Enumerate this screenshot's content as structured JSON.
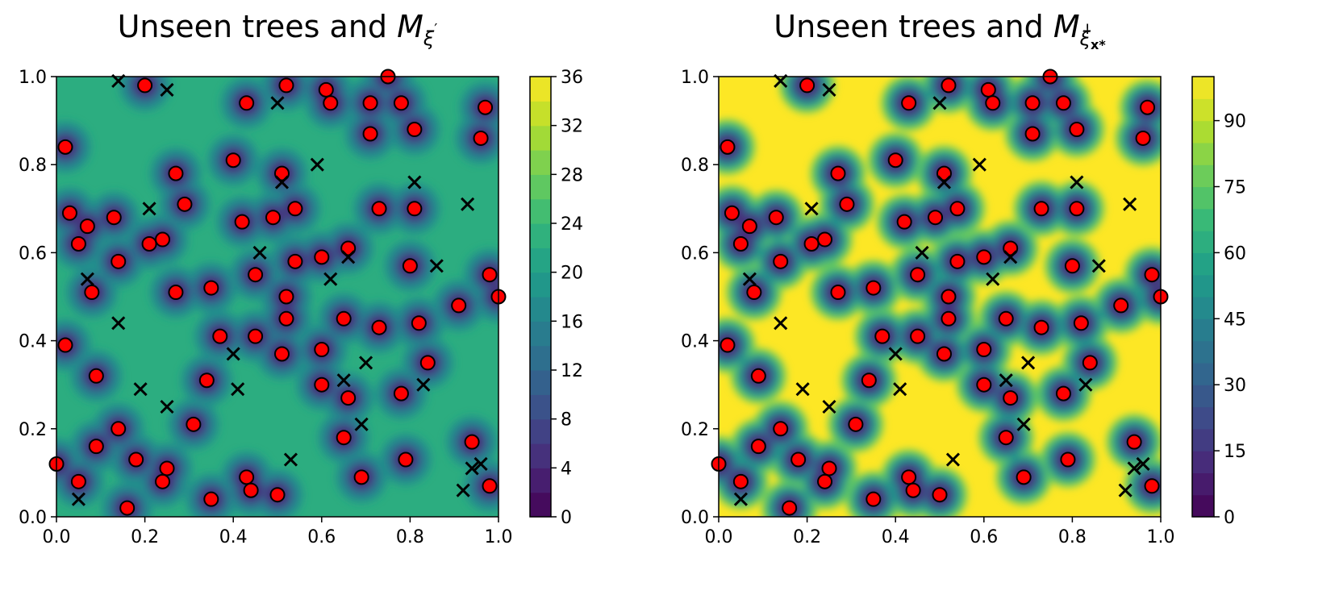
{
  "chart_data": [
    {
      "type": "heatmap",
      "title_text": "Unseen trees and ",
      "title_math": {
        "base": "M",
        "sub": "ξ",
        "sup": "′"
      },
      "xlim": [
        0,
        1
      ],
      "ylim": [
        0,
        1
      ],
      "xticks": [
        "0.0",
        "0.2",
        "0.4",
        "0.6",
        "0.8",
        "1.0"
      ],
      "yticks": [
        "0.0",
        "0.2",
        "0.4",
        "0.6",
        "0.8",
        "1.0"
      ],
      "colorbar": {
        "min": 0,
        "max": 36,
        "ticks": [
          "0",
          "4",
          "8",
          "12",
          "16",
          "20",
          "24",
          "28",
          "32",
          "36"
        ]
      },
      "background_level": 0.62,
      "colormap": "viridis"
    },
    {
      "type": "heatmap",
      "title_text": "Unseen trees and ",
      "title_math": {
        "base": "M",
        "sub": "ξ",
        "subsub": "x*",
        "sup": "!"
      },
      "xlim": [
        0,
        1
      ],
      "ylim": [
        0,
        1
      ],
      "xticks": [
        "0.0",
        "0.2",
        "0.4",
        "0.6",
        "0.8",
        "1.0"
      ],
      "yticks": [
        "0.0",
        "0.2",
        "0.4",
        "0.6",
        "0.8",
        "1.0"
      ],
      "colorbar": {
        "min": 0,
        "max": 100,
        "ticks": [
          "0",
          "15",
          "30",
          "45",
          "60",
          "75",
          "90"
        ]
      },
      "background_level": 1.0,
      "colormap": "viridis"
    }
  ],
  "trees": [
    [
      0.0,
      0.12
    ],
    [
      0.05,
      0.08
    ],
    [
      0.16,
      0.02
    ],
    [
      0.09,
      0.16
    ],
    [
      0.14,
      0.2
    ],
    [
      0.18,
      0.13
    ],
    [
      0.24,
      0.08
    ],
    [
      0.25,
      0.11
    ],
    [
      0.35,
      0.04
    ],
    [
      0.43,
      0.09
    ],
    [
      0.44,
      0.06
    ],
    [
      0.5,
      0.05
    ],
    [
      0.31,
      0.21
    ],
    [
      0.34,
      0.31
    ],
    [
      0.09,
      0.32
    ],
    [
      0.02,
      0.39
    ],
    [
      0.37,
      0.41
    ],
    [
      0.45,
      0.41
    ],
    [
      0.51,
      0.37
    ],
    [
      0.52,
      0.45
    ],
    [
      0.52,
      0.5
    ],
    [
      0.6,
      0.38
    ],
    [
      0.6,
      0.3
    ],
    [
      0.65,
      0.45
    ],
    [
      0.66,
      0.27
    ],
    [
      0.65,
      0.18
    ],
    [
      0.69,
      0.09
    ],
    [
      0.73,
      0.43
    ],
    [
      0.78,
      0.28
    ],
    [
      0.79,
      0.13
    ],
    [
      0.82,
      0.44
    ],
    [
      0.84,
      0.35
    ],
    [
      0.91,
      0.48
    ],
    [
      0.94,
      0.17
    ],
    [
      0.98,
      0.07
    ],
    [
      1.0,
      0.5
    ],
    [
      0.98,
      0.55
    ],
    [
      0.8,
      0.57
    ],
    [
      0.73,
      0.7
    ],
    [
      0.81,
      0.7
    ],
    [
      0.6,
      0.59
    ],
    [
      0.66,
      0.61
    ],
    [
      0.54,
      0.58
    ],
    [
      0.45,
      0.55
    ],
    [
      0.49,
      0.68
    ],
    [
      0.54,
      0.7
    ],
    [
      0.42,
      0.67
    ],
    [
      0.51,
      0.78
    ],
    [
      0.4,
      0.81
    ],
    [
      0.27,
      0.51
    ],
    [
      0.35,
      0.52
    ],
    [
      0.29,
      0.71
    ],
    [
      0.27,
      0.78
    ],
    [
      0.24,
      0.63
    ],
    [
      0.21,
      0.62
    ],
    [
      0.14,
      0.58
    ],
    [
      0.13,
      0.68
    ],
    [
      0.08,
      0.51
    ],
    [
      0.05,
      0.62
    ],
    [
      0.03,
      0.69
    ],
    [
      0.07,
      0.66
    ],
    [
      0.02,
      0.84
    ],
    [
      0.2,
      0.98
    ],
    [
      0.43,
      0.94
    ],
    [
      0.52,
      0.98
    ],
    [
      0.61,
      0.97
    ],
    [
      0.62,
      0.94
    ],
    [
      0.71,
      0.94
    ],
    [
      0.71,
      0.87
    ],
    [
      0.75,
      1.0
    ],
    [
      0.78,
      0.94
    ],
    [
      0.81,
      0.88
    ],
    [
      0.97,
      0.93
    ],
    [
      0.96,
      0.86
    ]
  ],
  "crosses": [
    [
      0.14,
      0.99
    ],
    [
      0.25,
      0.97
    ],
    [
      0.5,
      0.94
    ],
    [
      0.59,
      0.8
    ],
    [
      0.51,
      0.76
    ],
    [
      0.81,
      0.76
    ],
    [
      0.93,
      0.71
    ],
    [
      0.21,
      0.7
    ],
    [
      0.46,
      0.6
    ],
    [
      0.66,
      0.59
    ],
    [
      0.86,
      0.57
    ],
    [
      0.62,
      0.54
    ],
    [
      0.07,
      0.54
    ],
    [
      0.14,
      0.44
    ],
    [
      0.4,
      0.37
    ],
    [
      0.7,
      0.35
    ],
    [
      0.41,
      0.29
    ],
    [
      0.65,
      0.31
    ],
    [
      0.83,
      0.3
    ],
    [
      0.19,
      0.29
    ],
    [
      0.25,
      0.25
    ],
    [
      0.69,
      0.21
    ],
    [
      0.53,
      0.13
    ],
    [
      0.96,
      0.12
    ],
    [
      0.94,
      0.11
    ],
    [
      0.92,
      0.06
    ],
    [
      0.05,
      0.04
    ]
  ]
}
